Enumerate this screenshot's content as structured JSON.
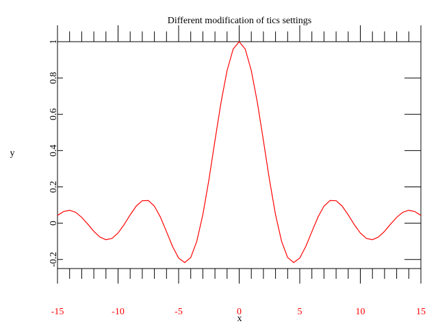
{
  "chart_data": {
    "type": "line",
    "title": "Different modification of tics settings",
    "x_label": "x",
    "y_label": "y",
    "x": [
      -15,
      -14.5,
      -14,
      -13.5,
      -13,
      -12.5,
      -12,
      -11.5,
      -11,
      -10.5,
      -10,
      -9.5,
      -9,
      -8.5,
      -8,
      -7.5,
      -7,
      -6.5,
      -6,
      -5.5,
      -5,
      -4.5,
      -4,
      -3.5,
      -3,
      -2.5,
      -2,
      -1.5,
      -1,
      -0.5,
      0,
      0.5,
      1,
      1.5,
      2,
      2.5,
      3,
      3.5,
      4,
      4.5,
      5,
      5.5,
      6,
      6.5,
      7,
      7.5,
      8,
      8.5,
      9,
      9.5,
      10,
      10.5,
      11,
      11.5,
      12,
      12.5,
      13,
      13.5,
      14,
      14.5,
      15
    ],
    "series": [
      {
        "color": "#ff0000",
        "values": [
          0.043,
          0.064,
          0.071,
          0.06,
          0.032,
          -0.005,
          -0.045,
          -0.076,
          -0.091,
          -0.084,
          -0.054,
          -0.008,
          0.046,
          0.094,
          0.124,
          0.125,
          0.094,
          0.033,
          -0.047,
          -0.128,
          -0.192,
          -0.217,
          -0.189,
          -0.1,
          0.047,
          0.239,
          0.455,
          0.665,
          0.841,
          0.959,
          1,
          0.959,
          0.841,
          0.665,
          0.455,
          0.239,
          0.047,
          -0.1,
          -0.189,
          -0.217,
          -0.192,
          -0.128,
          -0.047,
          0.033,
          0.094,
          0.125,
          0.124,
          0.094,
          0.046,
          -0.008,
          -0.054,
          -0.084,
          -0.091,
          -0.076,
          -0.045,
          -0.005,
          0.032,
          0.06,
          0.071,
          0.064,
          0.043
        ]
      }
    ],
    "xlim": [
      -15,
      15
    ],
    "xticks": [
      -15,
      -10,
      -5,
      0,
      5,
      10,
      15
    ],
    "xminorticks": [
      -14,
      -13,
      -12,
      -11,
      -9,
      -8,
      -7,
      -6,
      -4,
      -3,
      -2,
      -1,
      1,
      2,
      3,
      4,
      6,
      7,
      8,
      9,
      11,
      12,
      13,
      14
    ],
    "xtick_color": "#ff0000",
    "ylim": [
      -0.25,
      1
    ],
    "yticks": [
      -0.2,
      0,
      0.2,
      0.4,
      0.6,
      0.8,
      1
    ]
  }
}
